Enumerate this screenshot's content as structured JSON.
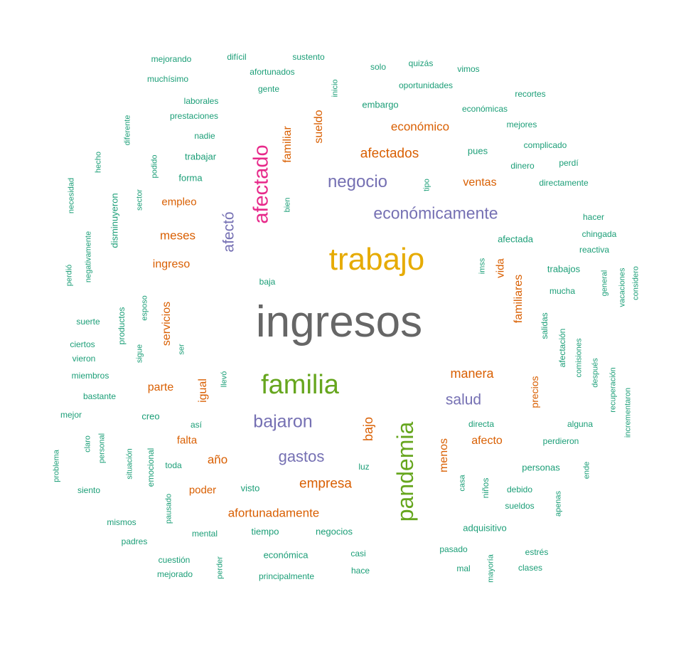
{
  "palette": {
    "teal": "#1b9e77",
    "orange": "#d95f02",
    "purple": "#7570b3",
    "magenta": "#e7298a",
    "green": "#66a61e",
    "gold": "#e6ab02",
    "gray": "#666666"
  },
  "words": [
    {
      "text": "ingresos",
      "color": "gray"
    },
    {
      "text": "trabajo",
      "color": "gold"
    },
    {
      "text": "familia",
      "color": "green"
    },
    {
      "text": "pandemia",
      "color": "green"
    },
    {
      "text": "afectado",
      "color": "magenta"
    },
    {
      "text": "bajaron",
      "color": "purple"
    },
    {
      "text": "económicamente",
      "color": "purple"
    },
    {
      "text": "negocio",
      "color": "purple"
    },
    {
      "text": "gastos",
      "color": "purple"
    },
    {
      "text": "salud",
      "color": "purple"
    },
    {
      "text": "afectó",
      "color": "purple"
    },
    {
      "text": "empresa",
      "color": "orange"
    },
    {
      "text": "afectados",
      "color": "orange"
    },
    {
      "text": "económico",
      "color": "orange"
    },
    {
      "text": "manera",
      "color": "orange"
    },
    {
      "text": "afortunadamente",
      "color": "orange"
    },
    {
      "text": "meses",
      "color": "orange"
    },
    {
      "text": "ingreso",
      "color": "orange"
    },
    {
      "text": "parte",
      "color": "orange"
    },
    {
      "text": "año",
      "color": "orange"
    },
    {
      "text": "ventas",
      "color": "orange"
    },
    {
      "text": "afecto",
      "color": "orange"
    },
    {
      "text": "empleo",
      "color": "orange"
    },
    {
      "text": "poder",
      "color": "orange"
    },
    {
      "text": "falta",
      "color": "orange"
    },
    {
      "text": "bajo",
      "color": "orange"
    },
    {
      "text": "igual",
      "color": "orange"
    },
    {
      "text": "menos",
      "color": "orange"
    },
    {
      "text": "servicios",
      "color": "orange"
    },
    {
      "text": "familiares",
      "color": "orange"
    },
    {
      "text": "sueldo",
      "color": "orange"
    },
    {
      "text": "familiar",
      "color": "orange"
    },
    {
      "text": "precios",
      "color": "orange"
    },
    {
      "text": "vida",
      "color": "orange"
    },
    {
      "text": "mejorando",
      "color": "teal"
    },
    {
      "text": "difícil",
      "color": "teal"
    },
    {
      "text": "sustento",
      "color": "teal"
    },
    {
      "text": "afortunados",
      "color": "teal"
    },
    {
      "text": "muchísimo",
      "color": "teal"
    },
    {
      "text": "solo",
      "color": "teal"
    },
    {
      "text": "quizás",
      "color": "teal"
    },
    {
      "text": "vimos",
      "color": "teal"
    },
    {
      "text": "gente",
      "color": "teal"
    },
    {
      "text": "oportunidades",
      "color": "teal"
    },
    {
      "text": "laborales",
      "color": "teal"
    },
    {
      "text": "recortes",
      "color": "teal"
    },
    {
      "text": "prestaciones",
      "color": "teal"
    },
    {
      "text": "embargo",
      "color": "teal"
    },
    {
      "text": "económicas",
      "color": "teal"
    },
    {
      "text": "nadie",
      "color": "teal"
    },
    {
      "text": "mejores",
      "color": "teal"
    },
    {
      "text": "complicado",
      "color": "teal"
    },
    {
      "text": "trabajar",
      "color": "teal"
    },
    {
      "text": "pues",
      "color": "teal"
    },
    {
      "text": "dinero",
      "color": "teal"
    },
    {
      "text": "perdí",
      "color": "teal"
    },
    {
      "text": "forma",
      "color": "teal"
    },
    {
      "text": "directamente",
      "color": "teal"
    },
    {
      "text": "hacer",
      "color": "teal"
    },
    {
      "text": "chingada",
      "color": "teal"
    },
    {
      "text": "afectada",
      "color": "teal"
    },
    {
      "text": "reactiva",
      "color": "teal"
    },
    {
      "text": "trabajos",
      "color": "teal"
    },
    {
      "text": "baja",
      "color": "teal"
    },
    {
      "text": "mucha",
      "color": "teal"
    },
    {
      "text": "suerte",
      "color": "teal"
    },
    {
      "text": "ciertos",
      "color": "teal"
    },
    {
      "text": "vieron",
      "color": "teal"
    },
    {
      "text": "miembros",
      "color": "teal"
    },
    {
      "text": "bastante",
      "color": "teal"
    },
    {
      "text": "mejor",
      "color": "teal"
    },
    {
      "text": "creo",
      "color": "teal"
    },
    {
      "text": "así",
      "color": "teal"
    },
    {
      "text": "directa",
      "color": "teal"
    },
    {
      "text": "alguna",
      "color": "teal"
    },
    {
      "text": "perdieron",
      "color": "teal"
    },
    {
      "text": "toda",
      "color": "teal"
    },
    {
      "text": "luz",
      "color": "teal"
    },
    {
      "text": "personas",
      "color": "teal"
    },
    {
      "text": "siento",
      "color": "teal"
    },
    {
      "text": "visto",
      "color": "teal"
    },
    {
      "text": "debido",
      "color": "teal"
    },
    {
      "text": "sueldos",
      "color": "teal"
    },
    {
      "text": "mismos",
      "color": "teal"
    },
    {
      "text": "adquisitivo",
      "color": "teal"
    },
    {
      "text": "mental",
      "color": "teal"
    },
    {
      "text": "tiempo",
      "color": "teal"
    },
    {
      "text": "negocios",
      "color": "teal"
    },
    {
      "text": "padres",
      "color": "teal"
    },
    {
      "text": "pasado",
      "color": "teal"
    },
    {
      "text": "estrés",
      "color": "teal"
    },
    {
      "text": "económica",
      "color": "teal"
    },
    {
      "text": "casi",
      "color": "teal"
    },
    {
      "text": "cuestión",
      "color": "teal"
    },
    {
      "text": "clases",
      "color": "teal"
    },
    {
      "text": "mal",
      "color": "teal"
    },
    {
      "text": "hace",
      "color": "teal"
    },
    {
      "text": "mejorado",
      "color": "teal"
    },
    {
      "text": "principalmente",
      "color": "teal"
    },
    {
      "text": "inicio",
      "color": "teal"
    },
    {
      "text": "diferente",
      "color": "teal"
    },
    {
      "text": "hecho",
      "color": "teal"
    },
    {
      "text": "podido",
      "color": "teal"
    },
    {
      "text": "necesidad",
      "color": "teal"
    },
    {
      "text": "sector",
      "color": "teal"
    },
    {
      "text": "tipo",
      "color": "teal"
    },
    {
      "text": "bien",
      "color": "teal"
    },
    {
      "text": "disminuyeron",
      "color": "teal"
    },
    {
      "text": "negativamente",
      "color": "teal"
    },
    {
      "text": "perdió",
      "color": "teal"
    },
    {
      "text": "imss",
      "color": "teal"
    },
    {
      "text": "general",
      "color": "teal"
    },
    {
      "text": "vacaciones",
      "color": "teal"
    },
    {
      "text": "considero",
      "color": "teal"
    },
    {
      "text": "productos",
      "color": "teal"
    },
    {
      "text": "esposo",
      "color": "teal"
    },
    {
      "text": "salidas",
      "color": "teal"
    },
    {
      "text": "afectación",
      "color": "teal"
    },
    {
      "text": "comisiones",
      "color": "teal"
    },
    {
      "text": "después",
      "color": "teal"
    },
    {
      "text": "sigue",
      "color": "teal"
    },
    {
      "text": "ser",
      "color": "teal"
    },
    {
      "text": "recuperación",
      "color": "teal"
    },
    {
      "text": "incrementaron",
      "color": "teal"
    },
    {
      "text": "llevó",
      "color": "teal"
    },
    {
      "text": "claro",
      "color": "teal"
    },
    {
      "text": "personal",
      "color": "teal"
    },
    {
      "text": "problema",
      "color": "teal"
    },
    {
      "text": "situación",
      "color": "teal"
    },
    {
      "text": "emocional",
      "color": "teal"
    },
    {
      "text": "casa",
      "color": "teal"
    },
    {
      "text": "niños",
      "color": "teal"
    },
    {
      "text": "ende",
      "color": "teal"
    },
    {
      "text": "pausado",
      "color": "teal"
    },
    {
      "text": "apenas",
      "color": "teal"
    },
    {
      "text": "perder",
      "color": "teal"
    },
    {
      "text": "mayoría",
      "color": "teal"
    }
  ]
}
